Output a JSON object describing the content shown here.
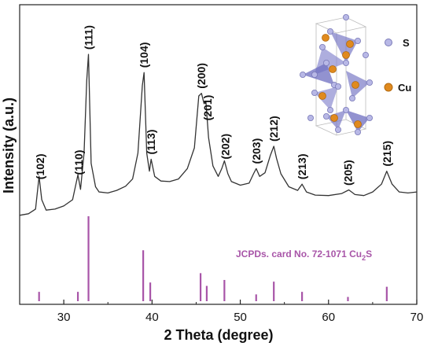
{
  "chart_data": {
    "type": "line",
    "xlabel": "2 Theta (degree)",
    "ylabel": "Intensity (a.u.)",
    "xlim": [
      25,
      70
    ],
    "xticks": [
      30,
      40,
      50,
      60,
      70
    ],
    "grid": false,
    "series": [
      {
        "x": [
          25,
          26,
          26.8,
          27.2,
          27.5,
          28,
          29,
          30,
          31,
          31.6,
          31.9,
          32.3,
          32.6,
          32.8,
          33.1,
          33.6,
          34,
          35,
          36,
          37,
          37.8,
          38.4,
          38.9,
          39.1,
          39.4,
          39.7,
          39.9,
          40.3,
          41,
          42,
          43,
          44,
          44.8,
          45.3,
          45.6,
          45.9,
          46.1,
          46.4,
          46.9,
          47.5,
          47.9,
          48.2,
          48.6,
          49,
          50,
          51,
          51.5,
          51.8,
          52.2,
          52.8,
          53.4,
          53.8,
          54.1,
          54.6,
          55.5,
          56.5,
          57,
          57.5,
          58.5,
          60,
          61.5,
          62.3,
          63,
          64,
          65,
          66,
          66.6,
          67.2,
          68,
          69,
          70
        ],
        "y": [
          2,
          2.3,
          3.2,
          9.5,
          5,
          3,
          3.2,
          3.8,
          5,
          9.8,
          7,
          14,
          28,
          33,
          12,
          7.5,
          6.5,
          6.3,
          6.8,
          7.6,
          9,
          14,
          27,
          29.5,
          14,
          10.5,
          12.8,
          9.5,
          8.6,
          8.5,
          9,
          11,
          15,
          25,
          25.5,
          23.5,
          24,
          17,
          11.5,
          9.5,
          11,
          12.5,
          10,
          8.5,
          7.8,
          8.2,
          10,
          11,
          9.5,
          10.2,
          13.5,
          15.3,
          13,
          10,
          7.5,
          6.8,
          8,
          6.5,
          5.9,
          5.8,
          6.2,
          6.9,
          6,
          5.8,
          6.5,
          8,
          10.5,
          8,
          6.5,
          6.3,
          6.5
        ]
      }
    ],
    "peak_labels": [
      {
        "x": 27.3,
        "label": "(102)"
      },
      {
        "x": 31.7,
        "label": "(110)"
      },
      {
        "x": 32.8,
        "label": "(111)"
      },
      {
        "x": 39.1,
        "label": "(104)"
      },
      {
        "x": 39.9,
        "label": "(113)"
      },
      {
        "x": 45.6,
        "label": "(200)"
      },
      {
        "x": 46.3,
        "label": "(201)"
      },
      {
        "x": 48.3,
        "label": "(202)"
      },
      {
        "x": 51.8,
        "label": "(203)"
      },
      {
        "x": 53.8,
        "label": "(212)"
      },
      {
        "x": 57.0,
        "label": "(213)"
      },
      {
        "x": 62.2,
        "label": "(205)"
      },
      {
        "x": 66.6,
        "label": "(215)"
      }
    ],
    "reference": {
      "label": "JCPDs. card No. 72-1071 Cu",
      "label_subscript": "2",
      "label_suffix": "S",
      "color": "#a855a8",
      "positions": [
        27.2,
        31.6,
        32.8,
        39.0,
        39.8,
        45.5,
        46.2,
        48.2,
        51.8,
        53.8,
        57.0,
        62.2,
        66.6
      ],
      "intensities": [
        11,
        11,
        100,
        60,
        22,
        33,
        18,
        25,
        8,
        23,
        11,
        5,
        17
      ]
    },
    "inset_legend": [
      {
        "label": "S",
        "color": "#b8b8e6"
      },
      {
        "label": "Cu",
        "color": "#e08a1e"
      }
    ]
  }
}
